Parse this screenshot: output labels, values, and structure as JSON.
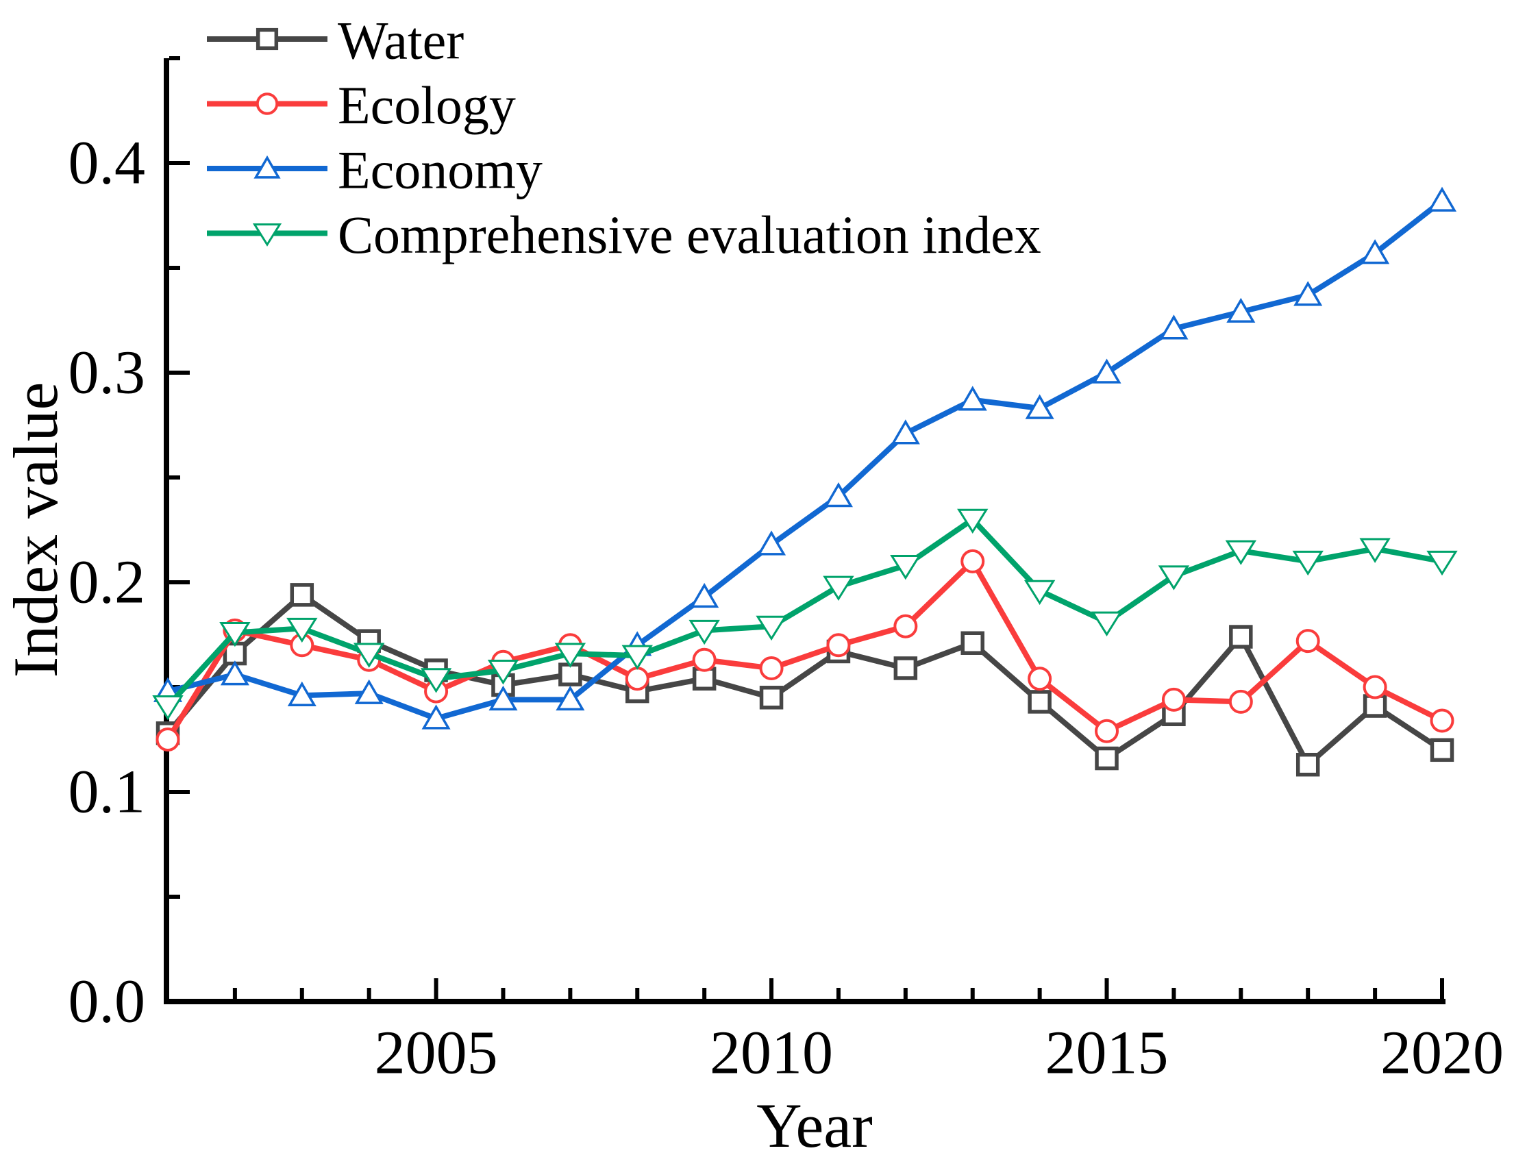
{
  "figure": {
    "background": "#ffffff",
    "axis_color": "#000000",
    "marker_fill": "#ffffff"
  },
  "chart_data": {
    "type": "line",
    "title": "",
    "xlabel": "Year",
    "ylabel": "Index value",
    "grid": false,
    "legend_position": "top-left",
    "xlim": [
      2001,
      2020
    ],
    "ylim": [
      0,
      0.45
    ],
    "x": [
      2001,
      2002,
      2003,
      2004,
      2005,
      2006,
      2007,
      2008,
      2009,
      2010,
      2011,
      2012,
      2013,
      2014,
      2015,
      2016,
      2017,
      2018,
      2019,
      2020
    ],
    "series": [
      {
        "name": "Water",
        "color": "#464646",
        "marker": "square",
        "values": [
          0.128,
          0.166,
          0.194,
          0.172,
          0.158,
          0.151,
          0.156,
          0.148,
          0.154,
          0.145,
          0.167,
          0.159,
          0.171,
          0.143,
          0.116,
          0.137,
          0.174,
          0.113,
          0.141,
          0.12
        ]
      },
      {
        "name": "Ecology",
        "color": "#fa3c3c",
        "marker": "circle",
        "values": [
          0.125,
          0.177,
          0.17,
          0.163,
          0.148,
          0.162,
          0.17,
          0.154,
          0.163,
          0.159,
          0.17,
          0.179,
          0.21,
          0.154,
          0.129,
          0.144,
          0.143,
          0.172,
          0.15,
          0.134
        ]
      },
      {
        "name": "Economy",
        "color": "#1168d2",
        "marker": "triangle-up",
        "values": [
          0.148,
          0.156,
          0.146,
          0.147,
          0.135,
          0.144,
          0.144,
          0.17,
          0.193,
          0.218,
          0.241,
          0.271,
          0.287,
          0.283,
          0.3,
          0.321,
          0.329,
          0.337,
          0.357,
          0.382
        ]
      },
      {
        "name": "Comprehensive evaluation index",
        "color": "#00a36b",
        "marker": "triangle-down",
        "values": [
          0.141,
          0.176,
          0.178,
          0.166,
          0.154,
          0.158,
          0.166,
          0.165,
          0.177,
          0.179,
          0.198,
          0.208,
          0.23,
          0.196,
          0.181,
          0.203,
          0.215,
          0.21,
          0.216,
          0.21
        ]
      }
    ],
    "x_ticks_major": [
      2005,
      2010,
      2015,
      2020
    ],
    "x_tick_labels": [
      "2005",
      "2010",
      "2015",
      "2020"
    ],
    "x_ticks_minor": [
      2002,
      2003,
      2004,
      2006,
      2007,
      2008,
      2009,
      2011,
      2012,
      2013,
      2014,
      2016,
      2017,
      2018,
      2019
    ],
    "y_ticks_major": [
      0.0,
      0.1,
      0.2,
      0.3,
      0.4
    ],
    "y_tick_labels": [
      "0.0",
      "0.1",
      "0.2",
      "0.3",
      "0.4"
    ],
    "y_ticks_minor": [
      0.05,
      0.15,
      0.25,
      0.35,
      0.45
    ]
  }
}
